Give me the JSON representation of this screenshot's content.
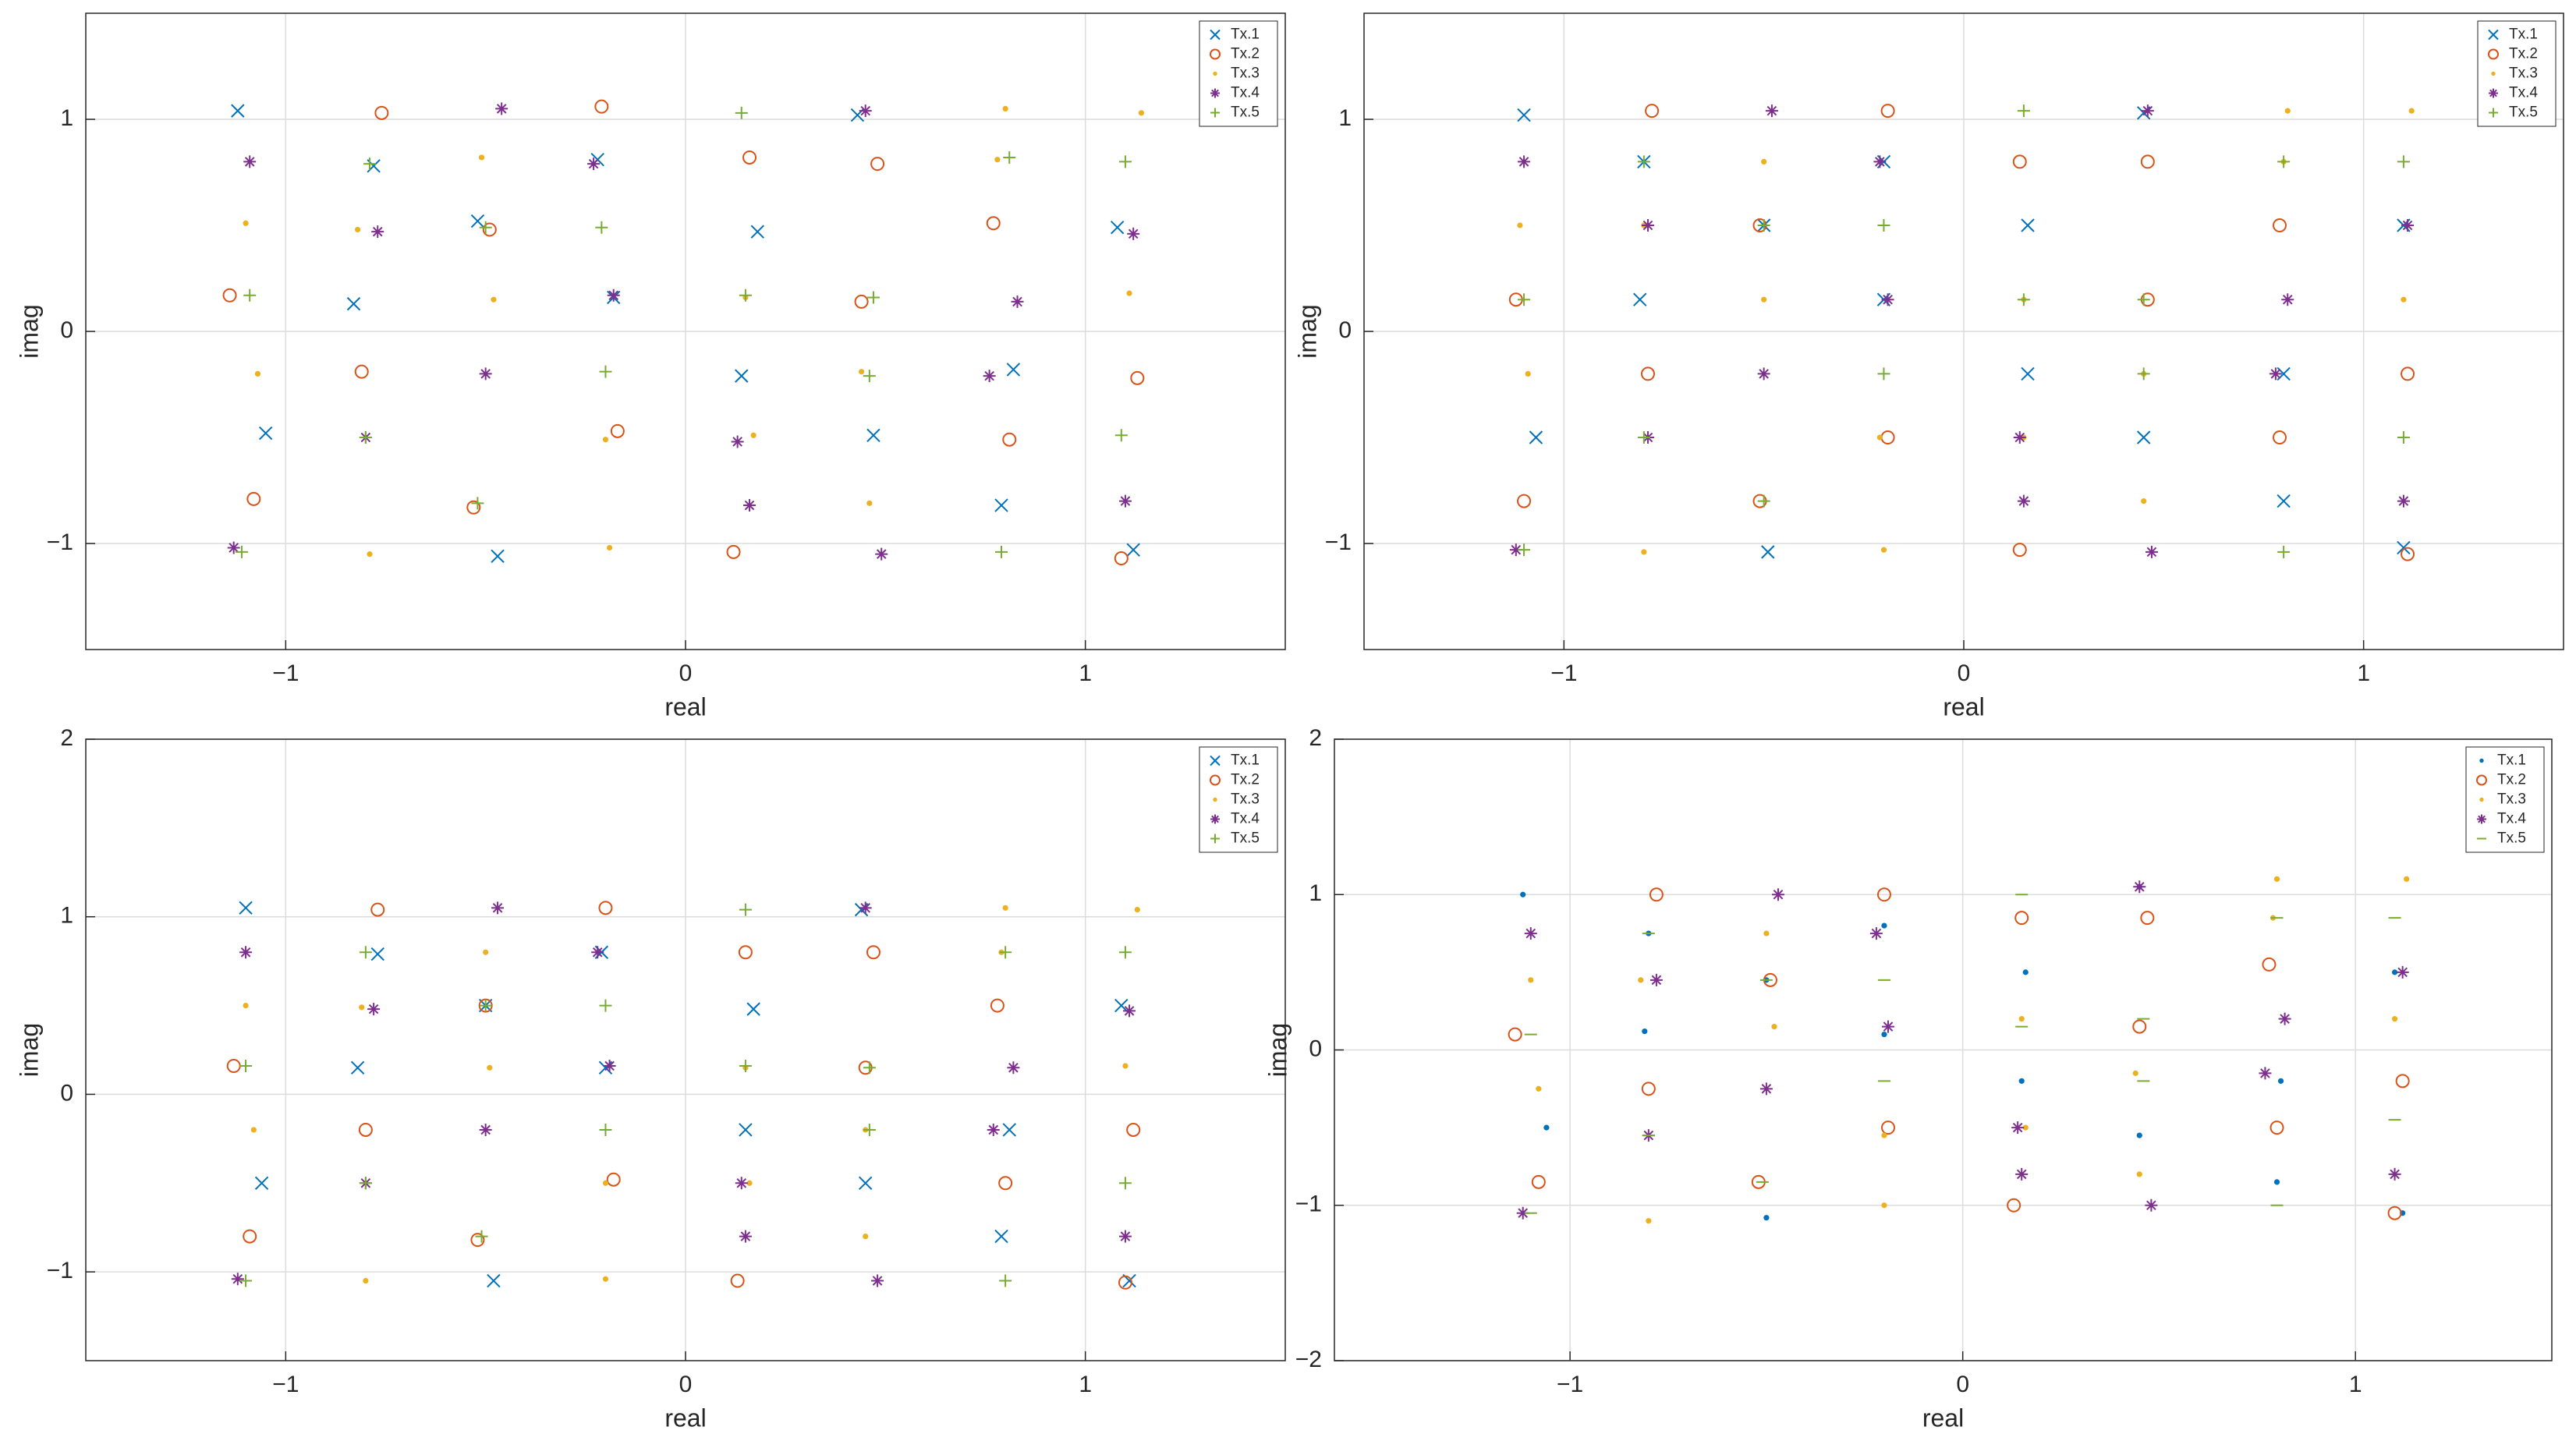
{
  "chart_data": [
    {
      "type": "scatter",
      "xlabel": "real",
      "ylabel": "imag",
      "grid": true,
      "legend": "northeast",
      "xlim": [
        -1.5,
        1.5
      ],
      "ylim": [
        -1.5,
        1.5
      ],
      "xticks": [
        {
          "value": -1,
          "label": "−1"
        },
        0,
        1
      ],
      "yticks": [
        {
          "value": -1,
          "label": "−1"
        },
        0,
        1
      ],
      "series": [
        {
          "name": "Tx.1",
          "color": "#0072BD",
          "marker": "x",
          "x": [
            -1.12,
            -0.78,
            -0.52,
            -0.18,
            0.14,
            0.47,
            0.79,
            1.12,
            -1.05,
            -0.83,
            -0.47,
            -0.22,
            0.18,
            0.43,
            0.82,
            1.08
          ],
          "y": [
            1.04,
            0.78,
            0.52,
            0.16,
            -0.21,
            -0.49,
            -0.82,
            -1.03,
            -0.48,
            0.13,
            -1.06,
            0.81,
            0.47,
            1.02,
            -0.18,
            0.49
          ]
        },
        {
          "name": "Tx.2",
          "color": "#D95319",
          "marker": "o",
          "x": [
            -1.08,
            -0.81,
            -0.49,
            -0.21,
            0.16,
            0.44,
            0.81,
            1.09,
            -1.14,
            -0.76,
            -0.53,
            -0.17,
            0.12,
            0.48,
            0.77,
            1.13
          ],
          "y": [
            -0.79,
            -0.19,
            0.48,
            1.06,
            0.82,
            0.14,
            -0.51,
            -1.07,
            0.17,
            1.03,
            -0.83,
            -0.47,
            -1.04,
            0.79,
            0.51,
            -0.22
          ]
        },
        {
          "name": "Tx.3",
          "color": "#EDB120",
          "marker": ".",
          "x": [
            -1.1,
            -0.79,
            -0.51,
            -0.2,
            0.15,
            0.46,
            0.8,
            1.11,
            -1.07,
            -0.82,
            -0.48,
            -0.19,
            0.17,
            0.44,
            0.78,
            1.14
          ],
          "y": [
            0.51,
            -1.05,
            0.82,
            -0.51,
            0.16,
            -0.81,
            1.05,
            0.18,
            -0.2,
            0.48,
            0.15,
            -1.02,
            -0.49,
            -0.19,
            0.81,
            1.03
          ]
        },
        {
          "name": "Tx.4",
          "color": "#7E2F8E",
          "marker": "*",
          "x": [
            -1.13,
            -0.77,
            -0.5,
            -0.23,
            0.13,
            0.45,
            0.83,
            1.1,
            -1.09,
            -0.8,
            -0.46,
            -0.18,
            0.16,
            0.49,
            0.76,
            1.12
          ],
          "y": [
            -1.02,
            0.47,
            -0.2,
            0.79,
            -0.52,
            1.04,
            0.14,
            -0.8,
            0.8,
            -0.5,
            1.05,
            0.17,
            -0.82,
            -1.05,
            -0.21,
            0.46
          ]
        },
        {
          "name": "Tx.5",
          "color": "#77AC30",
          "marker": "+",
          "x": [
            -1.09,
            -0.8,
            -0.52,
            -0.21,
            0.14,
            0.46,
            0.79,
            1.1,
            -1.11,
            -0.79,
            -0.5,
            -0.2,
            0.15,
            0.47,
            0.81,
            1.09
          ],
          "y": [
            0.17,
            -0.5,
            -0.81,
            0.49,
            1.03,
            -0.21,
            -1.04,
            0.8,
            -1.04,
            0.79,
            0.49,
            -0.19,
            0.17,
            0.16,
            0.82,
            -0.49
          ]
        }
      ]
    },
    {
      "type": "scatter",
      "xlabel": "real",
      "ylabel": "imag",
      "grid": true,
      "legend": "northeast",
      "xlim": [
        -1.5,
        1.5
      ],
      "ylim": [
        -1.5,
        1.5
      ],
      "xticks": [
        {
          "value": -1,
          "label": "−1"
        },
        0,
        1
      ],
      "yticks": [
        {
          "value": -1,
          "label": "−1"
        },
        0,
        1
      ],
      "series": [
        {
          "name": "Tx.1",
          "color": "#0072BD",
          "marker": "x",
          "x": [
            -1.1,
            -0.8,
            -0.5,
            -0.2,
            0.16,
            0.45,
            0.8,
            1.1,
            -1.07,
            -0.81,
            -0.49,
            -0.2,
            0.16,
            0.45,
            0.8,
            1.1
          ],
          "y": [
            1.02,
            0.8,
            0.5,
            0.15,
            -0.2,
            -0.5,
            -0.8,
            -1.02,
            -0.5,
            0.15,
            -1.04,
            0.8,
            0.5,
            1.03,
            -0.2,
            0.5
          ]
        },
        {
          "name": "Tx.2",
          "color": "#D95319",
          "marker": "o",
          "x": [
            -1.1,
            -0.79,
            -0.51,
            -0.19,
            0.14,
            0.46,
            0.79,
            1.11,
            -1.12,
            -0.78,
            -0.51,
            -0.19,
            0.14,
            0.46,
            0.79,
            1.11
          ],
          "y": [
            -0.8,
            -0.2,
            0.5,
            1.04,
            0.8,
            0.15,
            -0.5,
            -1.05,
            0.15,
            1.04,
            -0.8,
            -0.5,
            -1.03,
            0.8,
            0.5,
            -0.2
          ]
        },
        {
          "name": "Tx.3",
          "color": "#EDB120",
          "marker": ".",
          "x": [
            -1.11,
            -0.8,
            -0.5,
            -0.21,
            0.15,
            0.45,
            0.81,
            1.1,
            -1.09,
            -0.8,
            -0.5,
            -0.2,
            0.15,
            0.45,
            0.8,
            1.12
          ],
          "y": [
            0.5,
            -1.04,
            0.8,
            -0.5,
            0.15,
            -0.8,
            1.04,
            0.15,
            -0.2,
            0.5,
            0.15,
            -1.03,
            -0.5,
            -0.2,
            0.8,
            1.04
          ]
        },
        {
          "name": "Tx.4",
          "color": "#7E2F8E",
          "marker": "*",
          "x": [
            -1.12,
            -0.79,
            -0.5,
            -0.21,
            0.14,
            0.46,
            0.81,
            1.1,
            -1.1,
            -0.79,
            -0.48,
            -0.19,
            0.15,
            0.47,
            0.78,
            1.11
          ],
          "y": [
            -1.03,
            0.5,
            -0.2,
            0.8,
            -0.5,
            1.04,
            0.15,
            -0.8,
            0.8,
            -0.5,
            1.04,
            0.15,
            -0.8,
            -1.04,
            -0.2,
            0.5
          ]
        },
        {
          "name": "Tx.5",
          "color": "#77AC30",
          "marker": "+",
          "x": [
            -1.1,
            -0.8,
            -0.5,
            -0.2,
            0.15,
            0.45,
            0.8,
            1.1,
            -1.1,
            -0.8,
            -0.5,
            -0.2,
            0.15,
            0.45,
            0.8,
            1.1
          ],
          "y": [
            0.15,
            -0.5,
            -0.8,
            0.5,
            1.04,
            -0.2,
            -1.04,
            0.8,
            -1.03,
            0.8,
            0.5,
            -0.2,
            0.15,
            0.15,
            0.8,
            -0.5
          ]
        }
      ]
    },
    {
      "type": "scatter",
      "xlabel": "real",
      "ylabel": "imag",
      "grid": true,
      "legend": "northeast",
      "xlim": [
        -1.5,
        1.5
      ],
      "ylim": [
        -1.5,
        2
      ],
      "xticks": [
        {
          "value": -1,
          "label": "−1"
        },
        0,
        1
      ],
      "yticks": [
        {
          "value": -1,
          "label": "−1"
        },
        0,
        1,
        2
      ],
      "series": [
        {
          "name": "Tx.1",
          "color": "#0072BD",
          "marker": "x",
          "x": [
            -1.1,
            -0.77,
            -0.5,
            -0.2,
            0.15,
            0.45,
            0.79,
            1.11,
            -1.06,
            -0.82,
            -0.48,
            -0.21,
            0.17,
            0.44,
            0.81,
            1.09
          ],
          "y": [
            1.05,
            0.79,
            0.5,
            0.15,
            -0.2,
            -0.5,
            -0.8,
            -1.05,
            -0.5,
            0.15,
            -1.05,
            0.8,
            0.48,
            1.04,
            -0.2,
            0.5
          ]
        },
        {
          "name": "Tx.2",
          "color": "#D95319",
          "marker": "o",
          "x": [
            -1.09,
            -0.8,
            -0.5,
            -0.2,
            0.15,
            0.45,
            0.8,
            1.1,
            -1.13,
            -0.77,
            -0.52,
            -0.18,
            0.13,
            0.47,
            0.78,
            1.12
          ],
          "y": [
            -0.8,
            -0.2,
            0.5,
            1.05,
            0.8,
            0.15,
            -0.5,
            -1.06,
            0.16,
            1.04,
            -0.82,
            -0.48,
            -1.05,
            0.8,
            0.5,
            -0.2
          ]
        },
        {
          "name": "Tx.3",
          "color": "#EDB120",
          "marker": ".",
          "x": [
            -1.1,
            -0.8,
            -0.5,
            -0.2,
            0.15,
            0.45,
            0.8,
            1.1,
            -1.08,
            -0.81,
            -0.49,
            -0.2,
            0.16,
            0.45,
            0.79,
            1.13
          ],
          "y": [
            0.5,
            -1.05,
            0.8,
            -0.5,
            0.15,
            -0.8,
            1.05,
            0.16,
            -0.2,
            0.49,
            0.15,
            -1.04,
            -0.5,
            -0.2,
            0.8,
            1.04
          ]
        },
        {
          "name": "Tx.4",
          "color": "#7E2F8E",
          "marker": "*",
          "x": [
            -1.12,
            -0.78,
            -0.5,
            -0.22,
            0.14,
            0.45,
            0.82,
            1.1,
            -1.1,
            -0.8,
            -0.47,
            -0.19,
            0.15,
            0.48,
            0.77,
            1.11
          ],
          "y": [
            -1.04,
            0.48,
            -0.2,
            0.8,
            -0.5,
            1.05,
            0.15,
            -0.8,
            0.8,
            -0.5,
            1.05,
            0.16,
            -0.8,
            -1.05,
            -0.2,
            0.47
          ]
        },
        {
          "name": "Tx.5",
          "color": "#77AC30",
          "marker": "+",
          "x": [
            -1.1,
            -0.8,
            -0.51,
            -0.2,
            0.15,
            0.46,
            0.8,
            1.1,
            -1.1,
            -0.8,
            -0.5,
            -0.2,
            0.15,
            0.46,
            0.8,
            1.1
          ],
          "y": [
            0.16,
            -0.5,
            -0.8,
            0.5,
            1.04,
            -0.2,
            -1.05,
            0.8,
            -1.05,
            0.8,
            0.5,
            -0.2,
            0.16,
            0.15,
            0.8,
            -0.5
          ]
        }
      ]
    },
    {
      "type": "scatter",
      "xlabel": "real",
      "ylabel": "imag",
      "grid": true,
      "legend": "northeast",
      "xlim": [
        -1.6,
        1.5
      ],
      "ylim": [
        -2,
        2
      ],
      "xticks": [
        {
          "value": -1,
          "label": "−1"
        },
        0,
        1
      ],
      "yticks": [
        {
          "value": -2,
          "label": "−2"
        },
        {
          "value": -1,
          "label": "−1"
        },
        0,
        1,
        2
      ],
      "series": [
        {
          "name": "Tx.1",
          "color": "#0072BD",
          "marker": ".",
          "x": [
            -1.12,
            -0.8,
            -0.5,
            -0.2,
            0.15,
            0.45,
            0.8,
            1.12,
            -1.06,
            -0.81,
            -0.5,
            -0.2,
            0.16,
            0.45,
            0.81,
            1.1
          ],
          "y": [
            1.0,
            0.75,
            0.45,
            0.1,
            -0.2,
            -0.55,
            -0.85,
            -1.05,
            -0.5,
            0.12,
            -1.08,
            0.8,
            0.5,
            1.05,
            -0.2,
            0.5
          ]
        },
        {
          "name": "Tx.2",
          "color": "#D95319",
          "marker": "o",
          "x": [
            -1.08,
            -0.8,
            -0.49,
            -0.2,
            0.15,
            0.45,
            0.8,
            1.1,
            -1.14,
            -0.78,
            -0.52,
            -0.19,
            0.13,
            0.47,
            0.78,
            1.12
          ],
          "y": [
            -0.85,
            -0.25,
            0.45,
            1.0,
            0.85,
            0.15,
            -0.5,
            -1.05,
            0.1,
            1.0,
            -0.85,
            -0.5,
            -1.0,
            0.85,
            0.55,
            -0.2
          ]
        },
        {
          "name": "Tx.3",
          "color": "#EDB120",
          "marker": ".",
          "x": [
            -1.1,
            -0.8,
            -0.5,
            -0.2,
            0.15,
            0.45,
            0.8,
            1.1,
            -1.08,
            -0.82,
            -0.48,
            -0.2,
            0.16,
            0.44,
            0.79,
            1.13
          ],
          "y": [
            0.45,
            -1.1,
            0.75,
            -0.55,
            0.2,
            -0.8,
            1.1,
            0.2,
            -0.25,
            0.45,
            0.15,
            -1.0,
            -0.5,
            -0.15,
            0.85,
            1.1
          ]
        },
        {
          "name": "Tx.4",
          "color": "#7E2F8E",
          "marker": "*",
          "x": [
            -1.12,
            -0.78,
            -0.5,
            -0.22,
            0.14,
            0.45,
            0.82,
            1.1,
            -1.1,
            -0.8,
            -0.47,
            -0.19,
            0.15,
            0.48,
            0.77,
            1.12
          ],
          "y": [
            -1.05,
            0.45,
            -0.25,
            0.75,
            -0.5,
            1.05,
            0.2,
            -0.8,
            0.75,
            -0.55,
            1.0,
            0.15,
            -0.8,
            -1.0,
            -0.15,
            0.5
          ]
        },
        {
          "name": "Tx.5",
          "color": "#77AC30",
          "marker": "-",
          "x": [
            -1.1,
            -0.8,
            -0.51,
            -0.2,
            0.15,
            0.46,
            0.8,
            1.1,
            -1.1,
            -0.8,
            -0.5,
            -0.2,
            0.15,
            0.46,
            0.8,
            1.1
          ],
          "y": [
            0.1,
            -0.55,
            -0.85,
            0.45,
            1.0,
            -0.2,
            -1.0,
            0.85,
            -1.05,
            0.75,
            0.45,
            -0.2,
            0.15,
            0.2,
            0.85,
            -0.45
          ]
        }
      ]
    }
  ]
}
